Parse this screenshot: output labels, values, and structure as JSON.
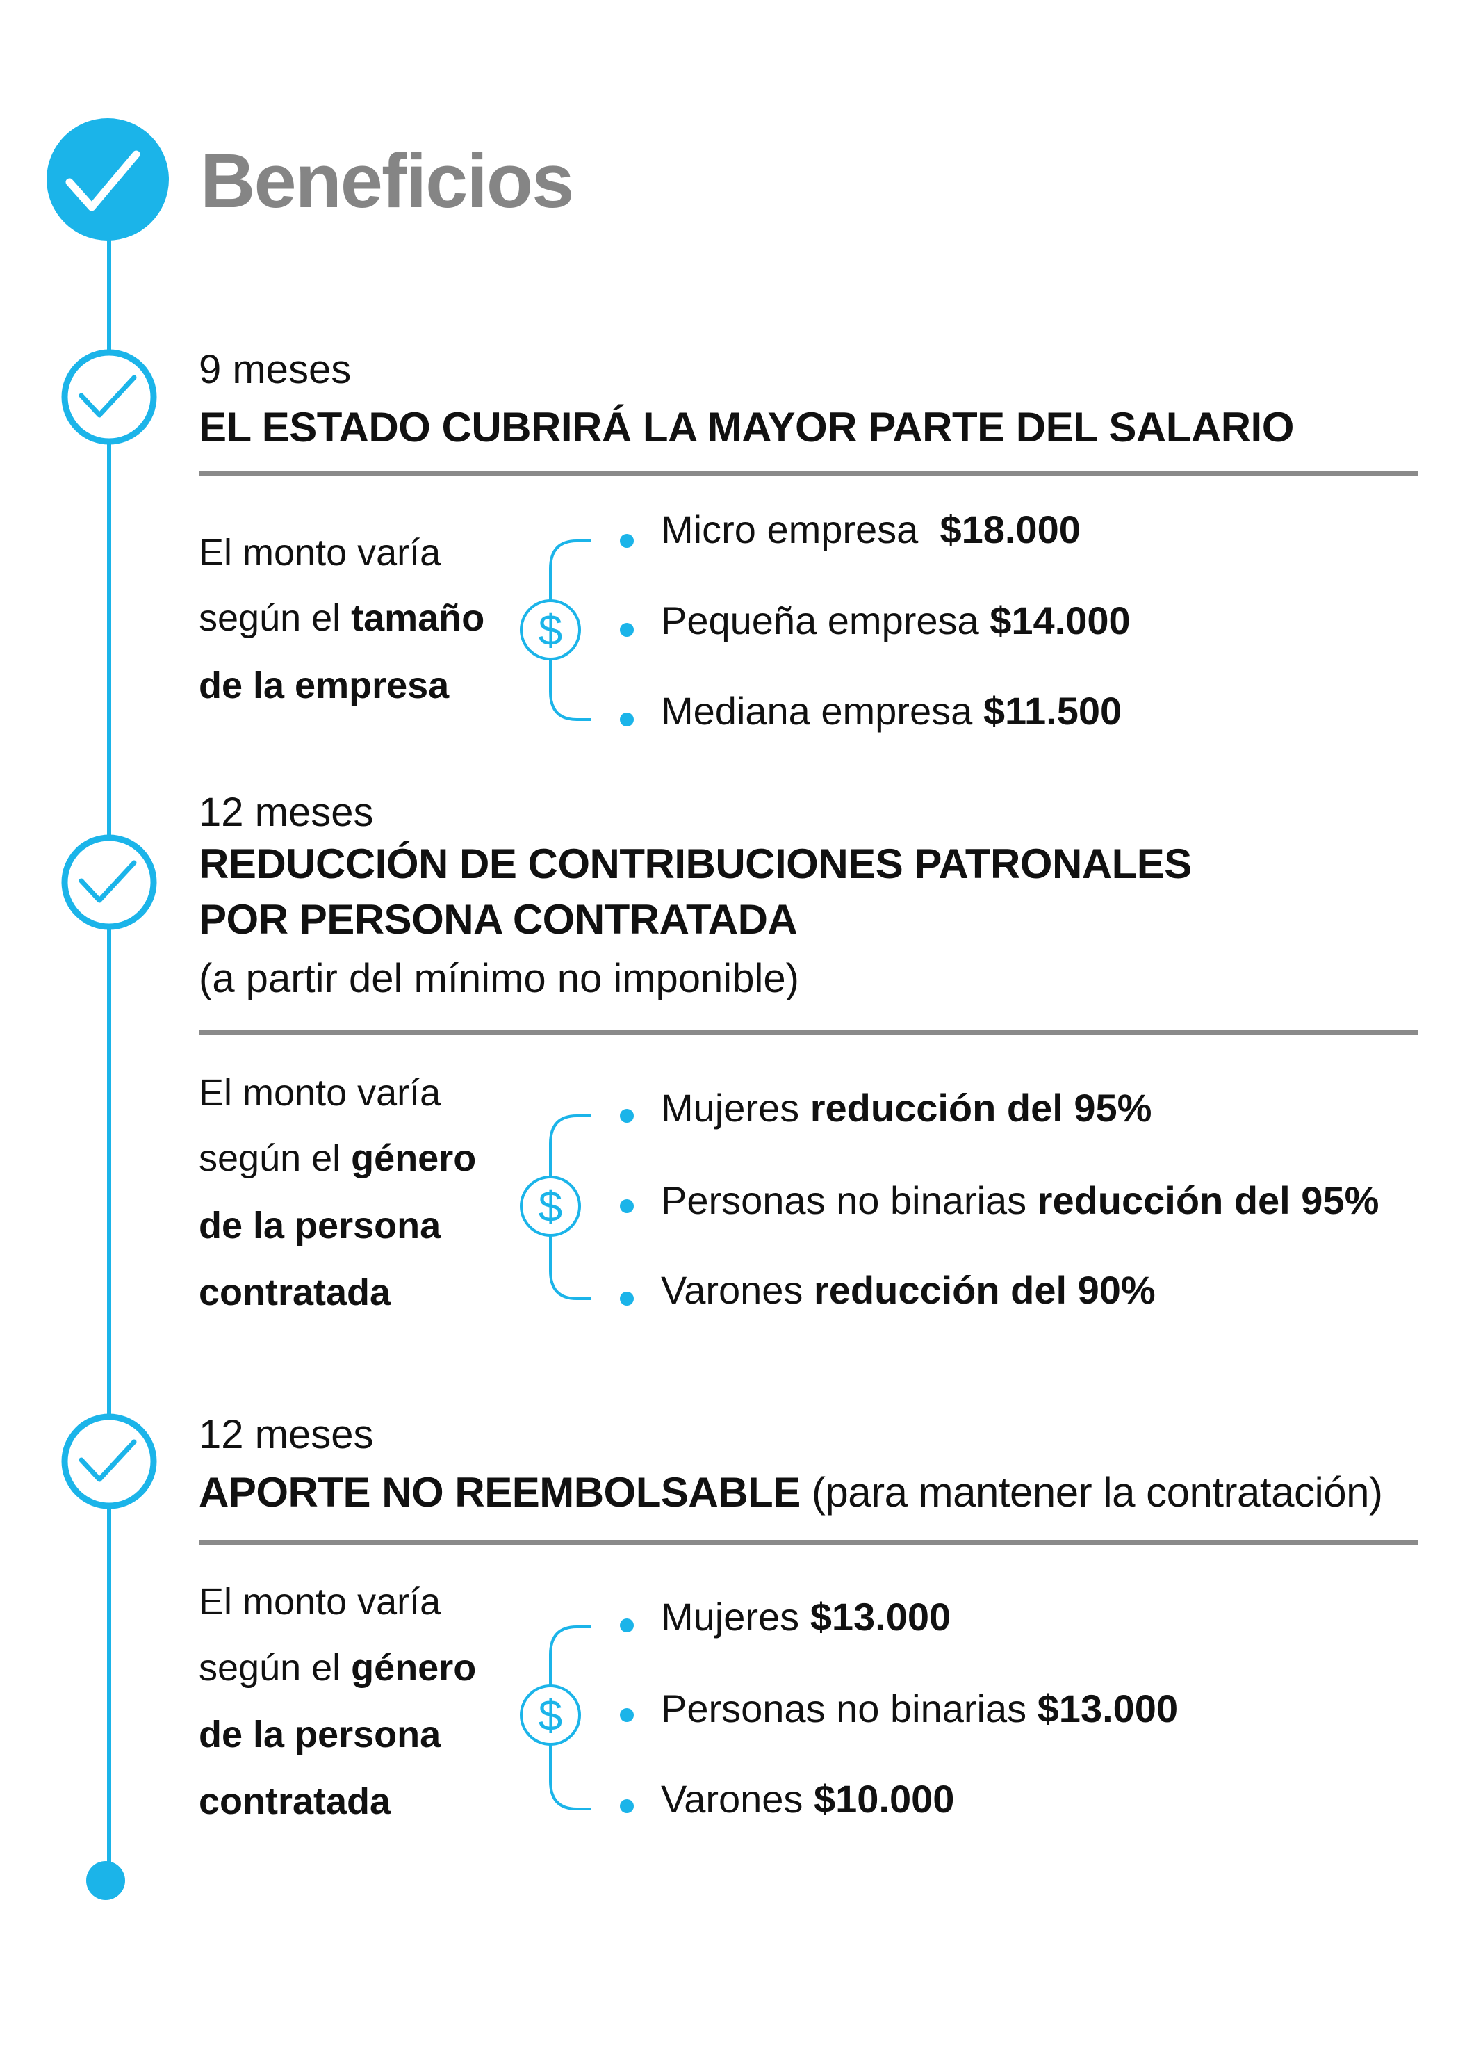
{
  "title": "Beneficios",
  "colors": {
    "accent": "#1bb4e9",
    "title": "#858585",
    "divider": "#8a8a8a"
  },
  "icons": {
    "header": "check-circle-filled-icon",
    "step": "check-circle-outline-icon",
    "money": "dollar-circle-icon",
    "bullet": "dot-icon"
  },
  "sections": [
    {
      "duration": "9 meses",
      "heading": [
        "EL ESTADO CUBRIRÁ LA MAYOR PARTE DEL SALARIO"
      ],
      "left": {
        "line1": "El monto varía",
        "line2_normal": "según el ",
        "line2_bold": "tamaño",
        "line3_bold": "de la empresa"
      },
      "items": [
        {
          "label": "Micro empresa  ",
          "value": "$18.000"
        },
        {
          "label": "Pequeña empresa ",
          "value": "$14.000"
        },
        {
          "label": "Mediana empresa ",
          "value": "$11.500"
        }
      ]
    },
    {
      "duration": "12 meses",
      "heading": [
        "REDUCCIÓN DE CONTRIBUCIONES PATRONALES",
        "POR PERSONA CONTRATADA"
      ],
      "subtitle": "(a partir del mínimo no imponible)",
      "left": {
        "line1": "El monto varía",
        "line2_normal": "según el ",
        "line2_bold": "género",
        "line3_bold": "de la persona",
        "line4_bold": "contratada"
      },
      "items": [
        {
          "label": "Mujeres ",
          "value": "reducción del 95%"
        },
        {
          "label": "Personas no binarias ",
          "value": "reducción del 95%"
        },
        {
          "label": "Varones ",
          "value": "reducción del 90%"
        }
      ]
    },
    {
      "duration": "12 meses",
      "heading": [
        "APORTE NO REEMBOLSABLE "
      ],
      "heading_suffix": "(para mantener la contratación)",
      "left": {
        "line1": "El monto varía",
        "line2_normal": "según el ",
        "line2_bold": "género",
        "line3_bold": "de la persona",
        "line4_bold": "contratada"
      },
      "items": [
        {
          "label": "Mujeres ",
          "value": "$13.000"
        },
        {
          "label": "Personas no binarias ",
          "value": "$13.000"
        },
        {
          "label": "Varones ",
          "value": "$10.000"
        }
      ]
    }
  ]
}
